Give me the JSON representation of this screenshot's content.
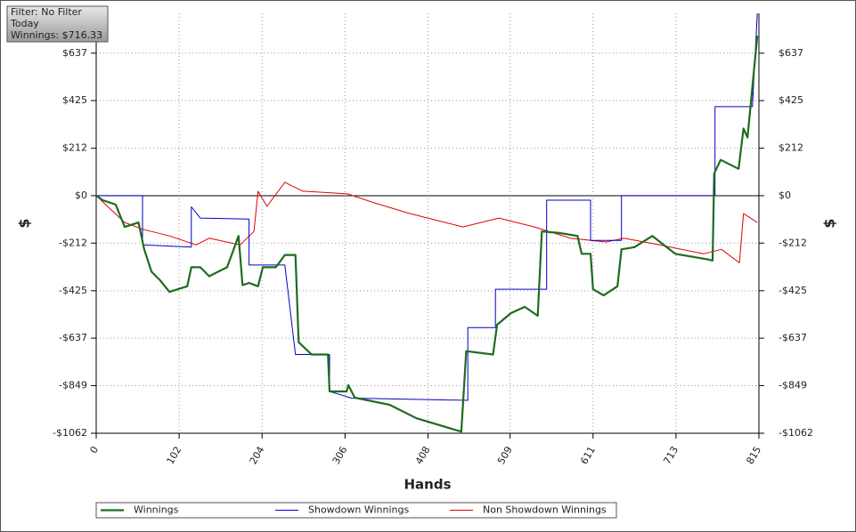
{
  "chart_data": {
    "type": "line",
    "annotations": [
      "Filter: No Filter",
      "Today",
      "Winnings: $716.33"
    ],
    "xlabel": "Hands",
    "ylabel": "$",
    "xlim": [
      0,
      815
    ],
    "xticks": [
      0,
      102,
      204,
      306,
      408,
      509,
      611,
      713,
      815
    ],
    "ylim": [
      -1062,
      815
    ],
    "yticks": [
      {
        "value": -1062,
        "label": "-$1062"
      },
      {
        "value": -849,
        "label": "-$849"
      },
      {
        "value": -637,
        "label": "-$637"
      },
      {
        "value": -425,
        "label": "-$425"
      },
      {
        "value": -212,
        "label": "-$212"
      },
      {
        "value": 0,
        "label": "$0"
      },
      {
        "value": 212,
        "label": "$212"
      },
      {
        "value": 425,
        "label": "$425"
      },
      {
        "value": 637,
        "label": "$637"
      }
    ],
    "grid": true,
    "legend": "bottom",
    "series": [
      {
        "name": "Winnings",
        "color": "#1f6b1f",
        "x": [
          0,
          8,
          24,
          35,
          52,
          59,
          68,
          79,
          90,
          112,
          117,
          128,
          139,
          150,
          161,
          175,
          180,
          188,
          199,
          205,
          221,
          232,
          245,
          249,
          265,
          285,
          287,
          308,
          310,
          318,
          361,
          394,
          449,
          455,
          488,
          493,
          510,
          527,
          543,
          548,
          570,
          592,
          597,
          608,
          611,
          624,
          641,
          646,
          662,
          684,
          712,
          752,
          758,
          760,
          768,
          790,
          796,
          801,
          813
        ],
        "values": [
          0,
          -20,
          -40,
          -140,
          -120,
          -240,
          -340,
          -380,
          -430,
          -405,
          -320,
          -320,
          -360,
          -340,
          -320,
          -180,
          -400,
          -390,
          -405,
          -320,
          -320,
          -265,
          -265,
          -655,
          -710,
          -710,
          -875,
          -875,
          -847,
          -903,
          -935,
          -995,
          -1055,
          -695,
          -710,
          -577,
          -525,
          -497,
          -537,
          -160,
          -167,
          -180,
          -260,
          -260,
          -418,
          -446,
          -405,
          -240,
          -230,
          -180,
          -260,
          -285,
          -290,
          100,
          160,
          120,
          300,
          260,
          715
        ]
      },
      {
        "name": "Showdown Winnings",
        "color": "#0000c8",
        "x": [
          0,
          57,
          57,
          117,
          117,
          128,
          188,
          188,
          232,
          245,
          287,
          287,
          314,
          457,
          457,
          491,
          491,
          554,
          554,
          608,
          608,
          646,
          646,
          761,
          761,
          807,
          813
        ],
        "values": [
          0,
          0,
          -220,
          -230,
          -50,
          -100,
          -105,
          -310,
          -310,
          -710,
          -710,
          -875,
          -905,
          -915,
          -590,
          -590,
          -418,
          -418,
          -20,
          -20,
          -200,
          -200,
          0,
          0,
          398,
          398,
          815
        ]
      },
      {
        "name": "Non Showdown Winnings",
        "color": "#e00000",
        "x": [
          0,
          35,
          57,
          90,
          123,
          139,
          177,
          194,
          199,
          210,
          232,
          254,
          309,
          342,
          386,
          451,
          495,
          539,
          583,
          627,
          649,
          693,
          747,
          769,
          791,
          796,
          813
        ],
        "values": [
          0,
          -120,
          -150,
          -180,
          -220,
          -190,
          -220,
          -160,
          20,
          -48,
          60,
          20,
          8,
          -32,
          -80,
          -140,
          -100,
          -140,
          -190,
          -207,
          -190,
          -220,
          -260,
          -240,
          -300,
          -80,
          -120
        ]
      }
    ]
  }
}
